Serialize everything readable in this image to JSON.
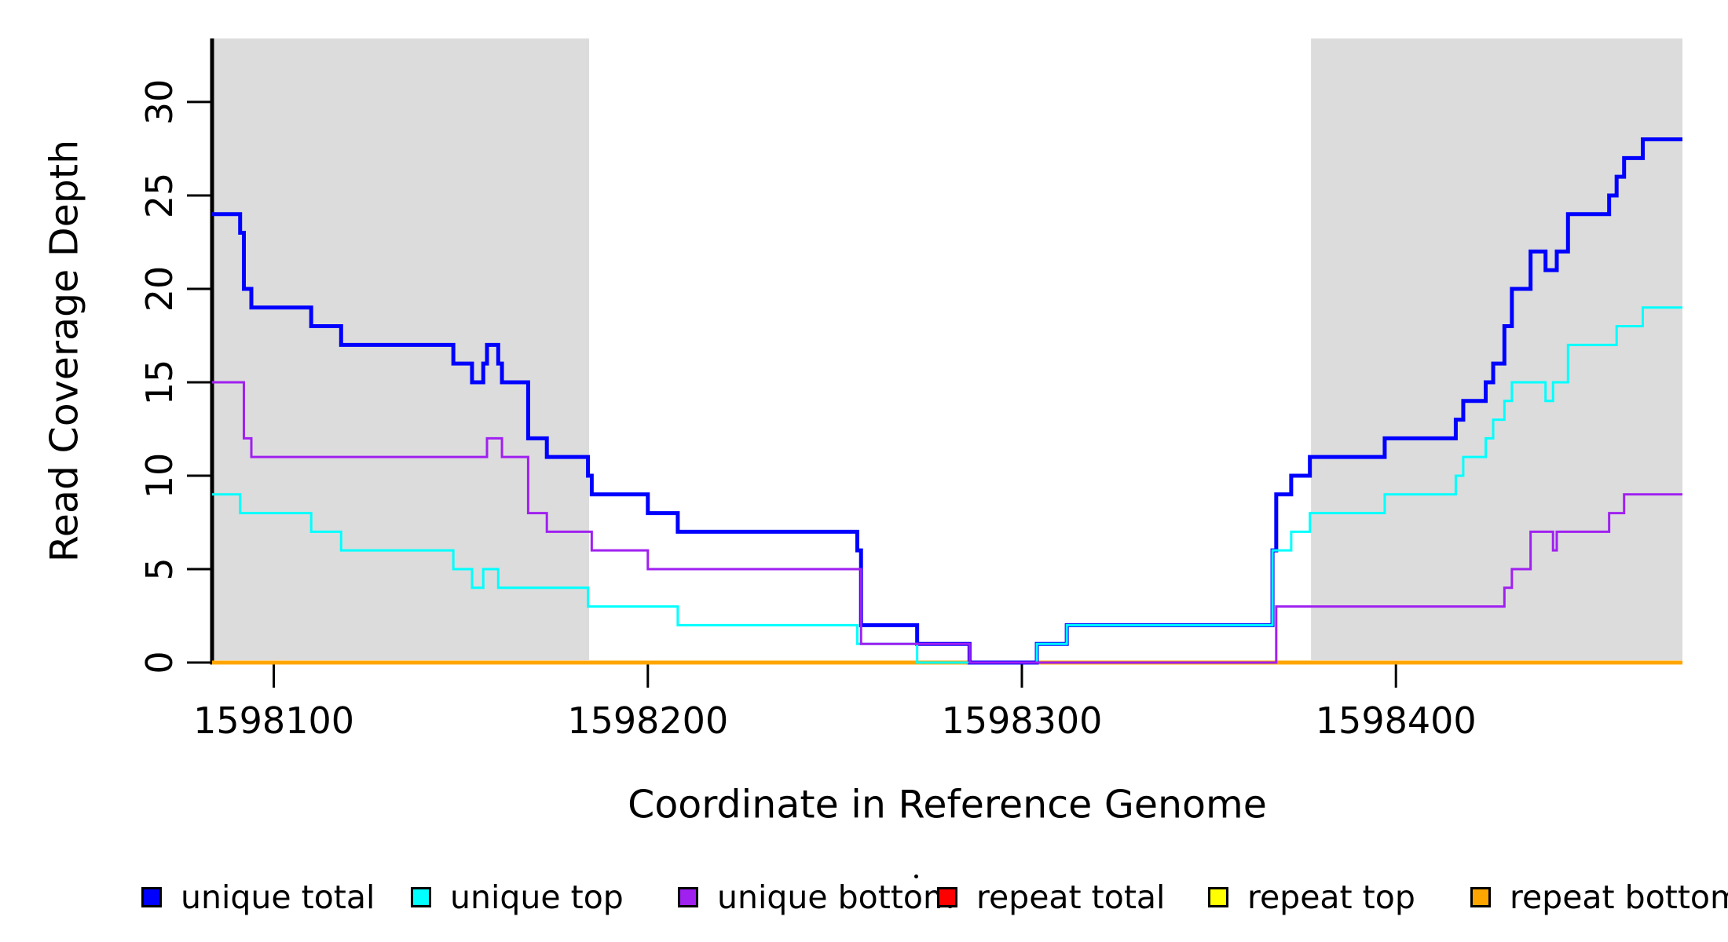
{
  "chart_data": {
    "type": "line",
    "subtype": "step",
    "title": "",
    "xlabel": "Coordinate in Reference Genome",
    "ylabel": "Read Coverage Depth",
    "xlim": [
      1598083.5,
      1598476.6
    ],
    "ylim": [
      0,
      33.4
    ],
    "grid": false,
    "x_ticks": {
      "values": [
        1598100,
        1598200,
        1598300,
        1598400
      ],
      "labels": [
        "1598100",
        "1598200",
        "1598300",
        "1598400"
      ]
    },
    "y_ticks": {
      "values": [
        0,
        5,
        10,
        15,
        20,
        25,
        30
      ],
      "labels": [
        "0",
        "5",
        "10",
        "15",
        "20",
        "25",
        "30"
      ]
    },
    "shaded_regions": {
      "color": "#DCDCDC",
      "ranges": [
        [
          1598083.5,
          1598184.3
        ],
        [
          1598377.3,
          1598476.6
        ]
      ]
    },
    "draw_order": [
      "repeat_total",
      "repeat_top",
      "repeat_bottom",
      "unique_total",
      "unique_top",
      "unique_bottom"
    ],
    "series": [
      {
        "key": "unique_total",
        "name": "unique total",
        "color": "#0000FF",
        "steps": [
          [
            1598083.5,
            24
          ],
          [
            1598091,
            23
          ],
          [
            1598092,
            20
          ],
          [
            1598094,
            19
          ],
          [
            1598110,
            18
          ],
          [
            1598118,
            17
          ],
          [
            1598148,
            16
          ],
          [
            1598153,
            15
          ],
          [
            1598156,
            16
          ],
          [
            1598157,
            17
          ],
          [
            1598160,
            16
          ],
          [
            1598161,
            15
          ],
          [
            1598168,
            12
          ],
          [
            1598173,
            11
          ],
          [
            1598184,
            10
          ],
          [
            1598185,
            9
          ],
          [
            1598200,
            8
          ],
          [
            1598208,
            7
          ],
          [
            1598256,
            6
          ],
          [
            1598257,
            2
          ],
          [
            1598272,
            1
          ],
          [
            1598286,
            0
          ],
          [
            1598304,
            1
          ],
          [
            1598312,
            2
          ],
          [
            1598367,
            6
          ],
          [
            1598368,
            9
          ],
          [
            1598372,
            10
          ],
          [
            1598377,
            11
          ],
          [
            1598397,
            12
          ],
          [
            1598416,
            13
          ],
          [
            1598418,
            14
          ],
          [
            1598424,
            15
          ],
          [
            1598426,
            16
          ],
          [
            1598429,
            18
          ],
          [
            1598431,
            20
          ],
          [
            1598436,
            22
          ],
          [
            1598440,
            21
          ],
          [
            1598443,
            22
          ],
          [
            1598446,
            24
          ],
          [
            1598457,
            25
          ],
          [
            1598459,
            26
          ],
          [
            1598461,
            27
          ],
          [
            1598466,
            28
          ]
        ]
      },
      {
        "key": "unique_top",
        "name": "unique top",
        "color": "#00FFFF",
        "steps": [
          [
            1598083.5,
            9
          ],
          [
            1598091,
            8
          ],
          [
            1598110,
            7
          ],
          [
            1598118,
            6
          ],
          [
            1598148,
            5
          ],
          [
            1598153,
            4
          ],
          [
            1598156,
            5
          ],
          [
            1598160,
            4
          ],
          [
            1598184,
            3
          ],
          [
            1598208,
            2
          ],
          [
            1598256,
            1
          ],
          [
            1598272,
            0
          ],
          [
            1598304,
            1
          ],
          [
            1598312,
            2
          ],
          [
            1598367,
            6
          ],
          [
            1598372,
            7
          ],
          [
            1598377,
            8
          ],
          [
            1598397,
            9
          ],
          [
            1598416,
            10
          ],
          [
            1598418,
            11
          ],
          [
            1598424,
            12
          ],
          [
            1598426,
            13
          ],
          [
            1598429,
            14
          ],
          [
            1598431,
            15
          ],
          [
            1598440,
            14
          ],
          [
            1598442,
            15
          ],
          [
            1598446,
            17
          ],
          [
            1598459,
            18
          ],
          [
            1598466,
            19
          ]
        ]
      },
      {
        "key": "unique_bottom",
        "name": "unique bottom",
        "color": "#A020F0",
        "steps": [
          [
            1598083.5,
            15
          ],
          [
            1598092,
            12
          ],
          [
            1598094,
            11
          ],
          [
            1598157,
            12
          ],
          [
            1598161,
            11
          ],
          [
            1598168,
            8
          ],
          [
            1598173,
            7
          ],
          [
            1598185,
            6
          ],
          [
            1598200,
            5
          ],
          [
            1598257,
            1
          ],
          [
            1598286,
            0
          ],
          [
            1598368,
            3
          ],
          [
            1598429,
            4
          ],
          [
            1598431,
            5
          ],
          [
            1598436,
            7
          ],
          [
            1598442,
            6
          ],
          [
            1598443,
            7
          ],
          [
            1598457,
            8
          ],
          [
            1598461,
            9
          ]
        ]
      },
      {
        "key": "repeat_total",
        "name": "repeat total",
        "color": "#FF0000",
        "steps": [
          [
            1598083.5,
            0
          ]
        ]
      },
      {
        "key": "repeat_top",
        "name": "repeat top",
        "color": "#FFFF00",
        "steps": [
          [
            1598083.5,
            0
          ]
        ]
      },
      {
        "key": "repeat_bottom",
        "name": "repeat bottom",
        "color": "#FFA500",
        "steps": [
          [
            1598083.5,
            0
          ]
        ]
      }
    ],
    "legend_position": "bottom"
  },
  "legend": {
    "items": [
      {
        "label": "unique total",
        "color": "#0000FF"
      },
      {
        "label": "unique top",
        "color": "#00FFFF"
      },
      {
        "label": "unique bottom",
        "color": "#A020F0"
      },
      {
        "label": "repeat total",
        "color": "#FF0000"
      },
      {
        "label": "repeat top",
        "color": "#FFFF00"
      },
      {
        "label": "repeat bottom",
        "color": "#FFA500"
      }
    ]
  },
  "colors": {
    "axis": "#000000",
    "background": "#FFFFFF",
    "shading": "#DCDCDC"
  }
}
